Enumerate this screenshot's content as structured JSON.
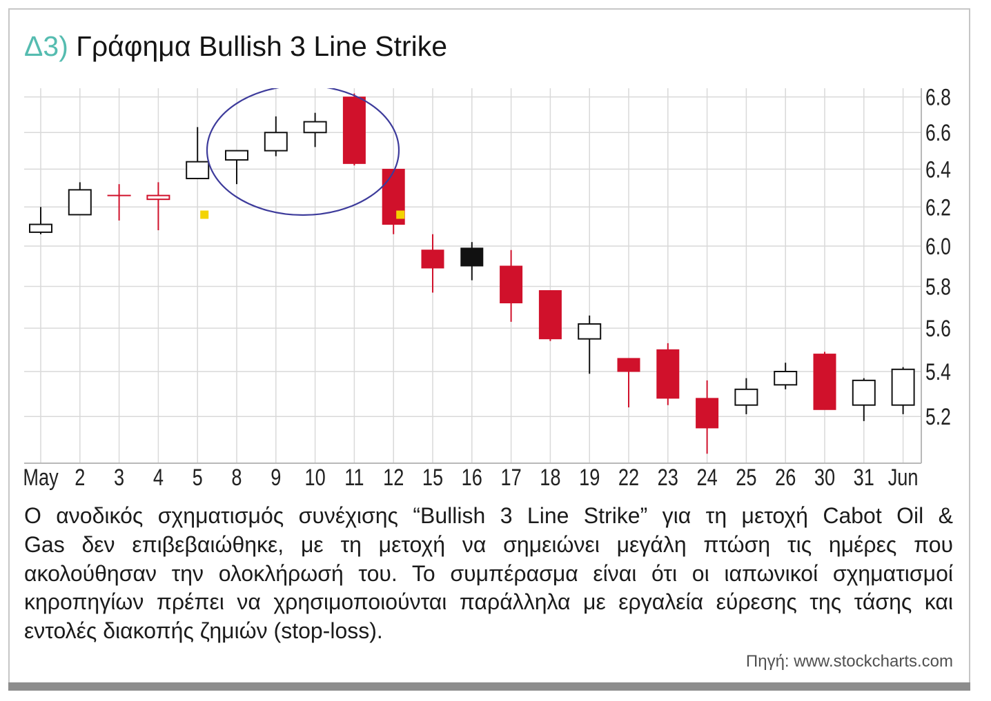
{
  "header": {
    "label": "Δ3)"
  },
  "chart_data": {
    "type": "candlestick",
    "title": "Γράφημα Bullish 3 Line Strike",
    "categories": [
      "May",
      "2",
      "3",
      "4",
      "5",
      "8",
      "9",
      "10",
      "11",
      "12",
      "15",
      "16",
      "17",
      "18",
      "19",
      "22",
      "23",
      "24",
      "25",
      "26",
      "30",
      "31",
      "Jun"
    ],
    "open": [
      6.07,
      6.16,
      6.26,
      6.24,
      6.35,
      6.45,
      6.5,
      6.6,
      6.8,
      6.4,
      5.98,
      5.99,
      5.9,
      5.78,
      5.55,
      5.46,
      5.5,
      5.28,
      5.25,
      5.34,
      5.48,
      5.25,
      5.25
    ],
    "high": [
      6.2,
      6.33,
      6.32,
      6.33,
      6.63,
      6.5,
      6.69,
      6.71,
      6.82,
      6.4,
      6.06,
      6.02,
      5.98,
      5.78,
      5.66,
      5.46,
      5.53,
      5.36,
      5.37,
      5.44,
      5.49,
      5.37,
      5.42
    ],
    "low": [
      6.06,
      6.16,
      6.13,
      6.08,
      6.35,
      6.32,
      6.47,
      6.52,
      6.42,
      6.06,
      5.77,
      5.83,
      5.63,
      5.54,
      5.39,
      5.24,
      5.25,
      5.04,
      5.21,
      5.32,
      5.23,
      5.18,
      5.21
    ],
    "close": [
      6.11,
      6.29,
      6.26,
      6.26,
      6.44,
      6.5,
      6.6,
      6.66,
      6.43,
      6.11,
      5.89,
      5.9,
      5.72,
      5.55,
      5.62,
      5.4,
      5.28,
      5.15,
      5.32,
      5.4,
      5.23,
      5.36,
      5.41
    ],
    "candle_colors": [
      "black",
      "black",
      "red",
      "red",
      "black",
      "black",
      "black",
      "black",
      "red",
      "red",
      "red",
      "black",
      "red",
      "red",
      "black",
      "red",
      "red",
      "red",
      "black",
      "black",
      "red",
      "black",
      "black"
    ],
    "y_scale": "log",
    "ylim": [
      5.0,
      6.85
    ],
    "yticks": [
      5.2,
      5.4,
      5.6,
      5.8,
      6.0,
      6.2,
      6.4,
      6.6,
      6.8
    ],
    "ytick_labels": [
      "5.2",
      "5.4",
      "5.6",
      "5.8",
      "6.0",
      "6.2",
      "6.4",
      "6.6",
      "6.8"
    ],
    "y_axis_position": "right",
    "grid": true,
    "markers": [
      {
        "category": "5",
        "value": 6.16
      },
      {
        "category": "12",
        "value": 6.16
      }
    ]
  },
  "description": {
    "lines": [
      "Ο ανοδικός σχηματισμός συνέχισης “Bullish 3 Line Strike” για τη μετοχή Cabot Oil &",
      "Gas δεν επιβεβαιώθηκε, με τη μετοχή να σημειώνει μεγάλη πτώση τις ημέρες που",
      "ακολούθησαν την ολοκλήρωσή του. Το συμπέρασμα είναι ότι οι ιαπωνικοί σχηματισμοί",
      "κηροπηγίων πρέπει να χρησιμοποιούνται παράλληλα με εργαλεία εύρεσης της τάσης και",
      "εντολές διακοπής ζημιών (stop-loss)."
    ]
  },
  "source": "Πηγή: www.stockcharts.com",
  "colors": {
    "accent": "#55bcb0",
    "candle_red": "#d0112b",
    "candle_black": "#111111",
    "ellipse": "#3d3b9b",
    "marker": "#f3d400",
    "grid": "#d9d9d9",
    "axis": "#b8b8b8",
    "frame_bar": "#8d8d8d"
  }
}
